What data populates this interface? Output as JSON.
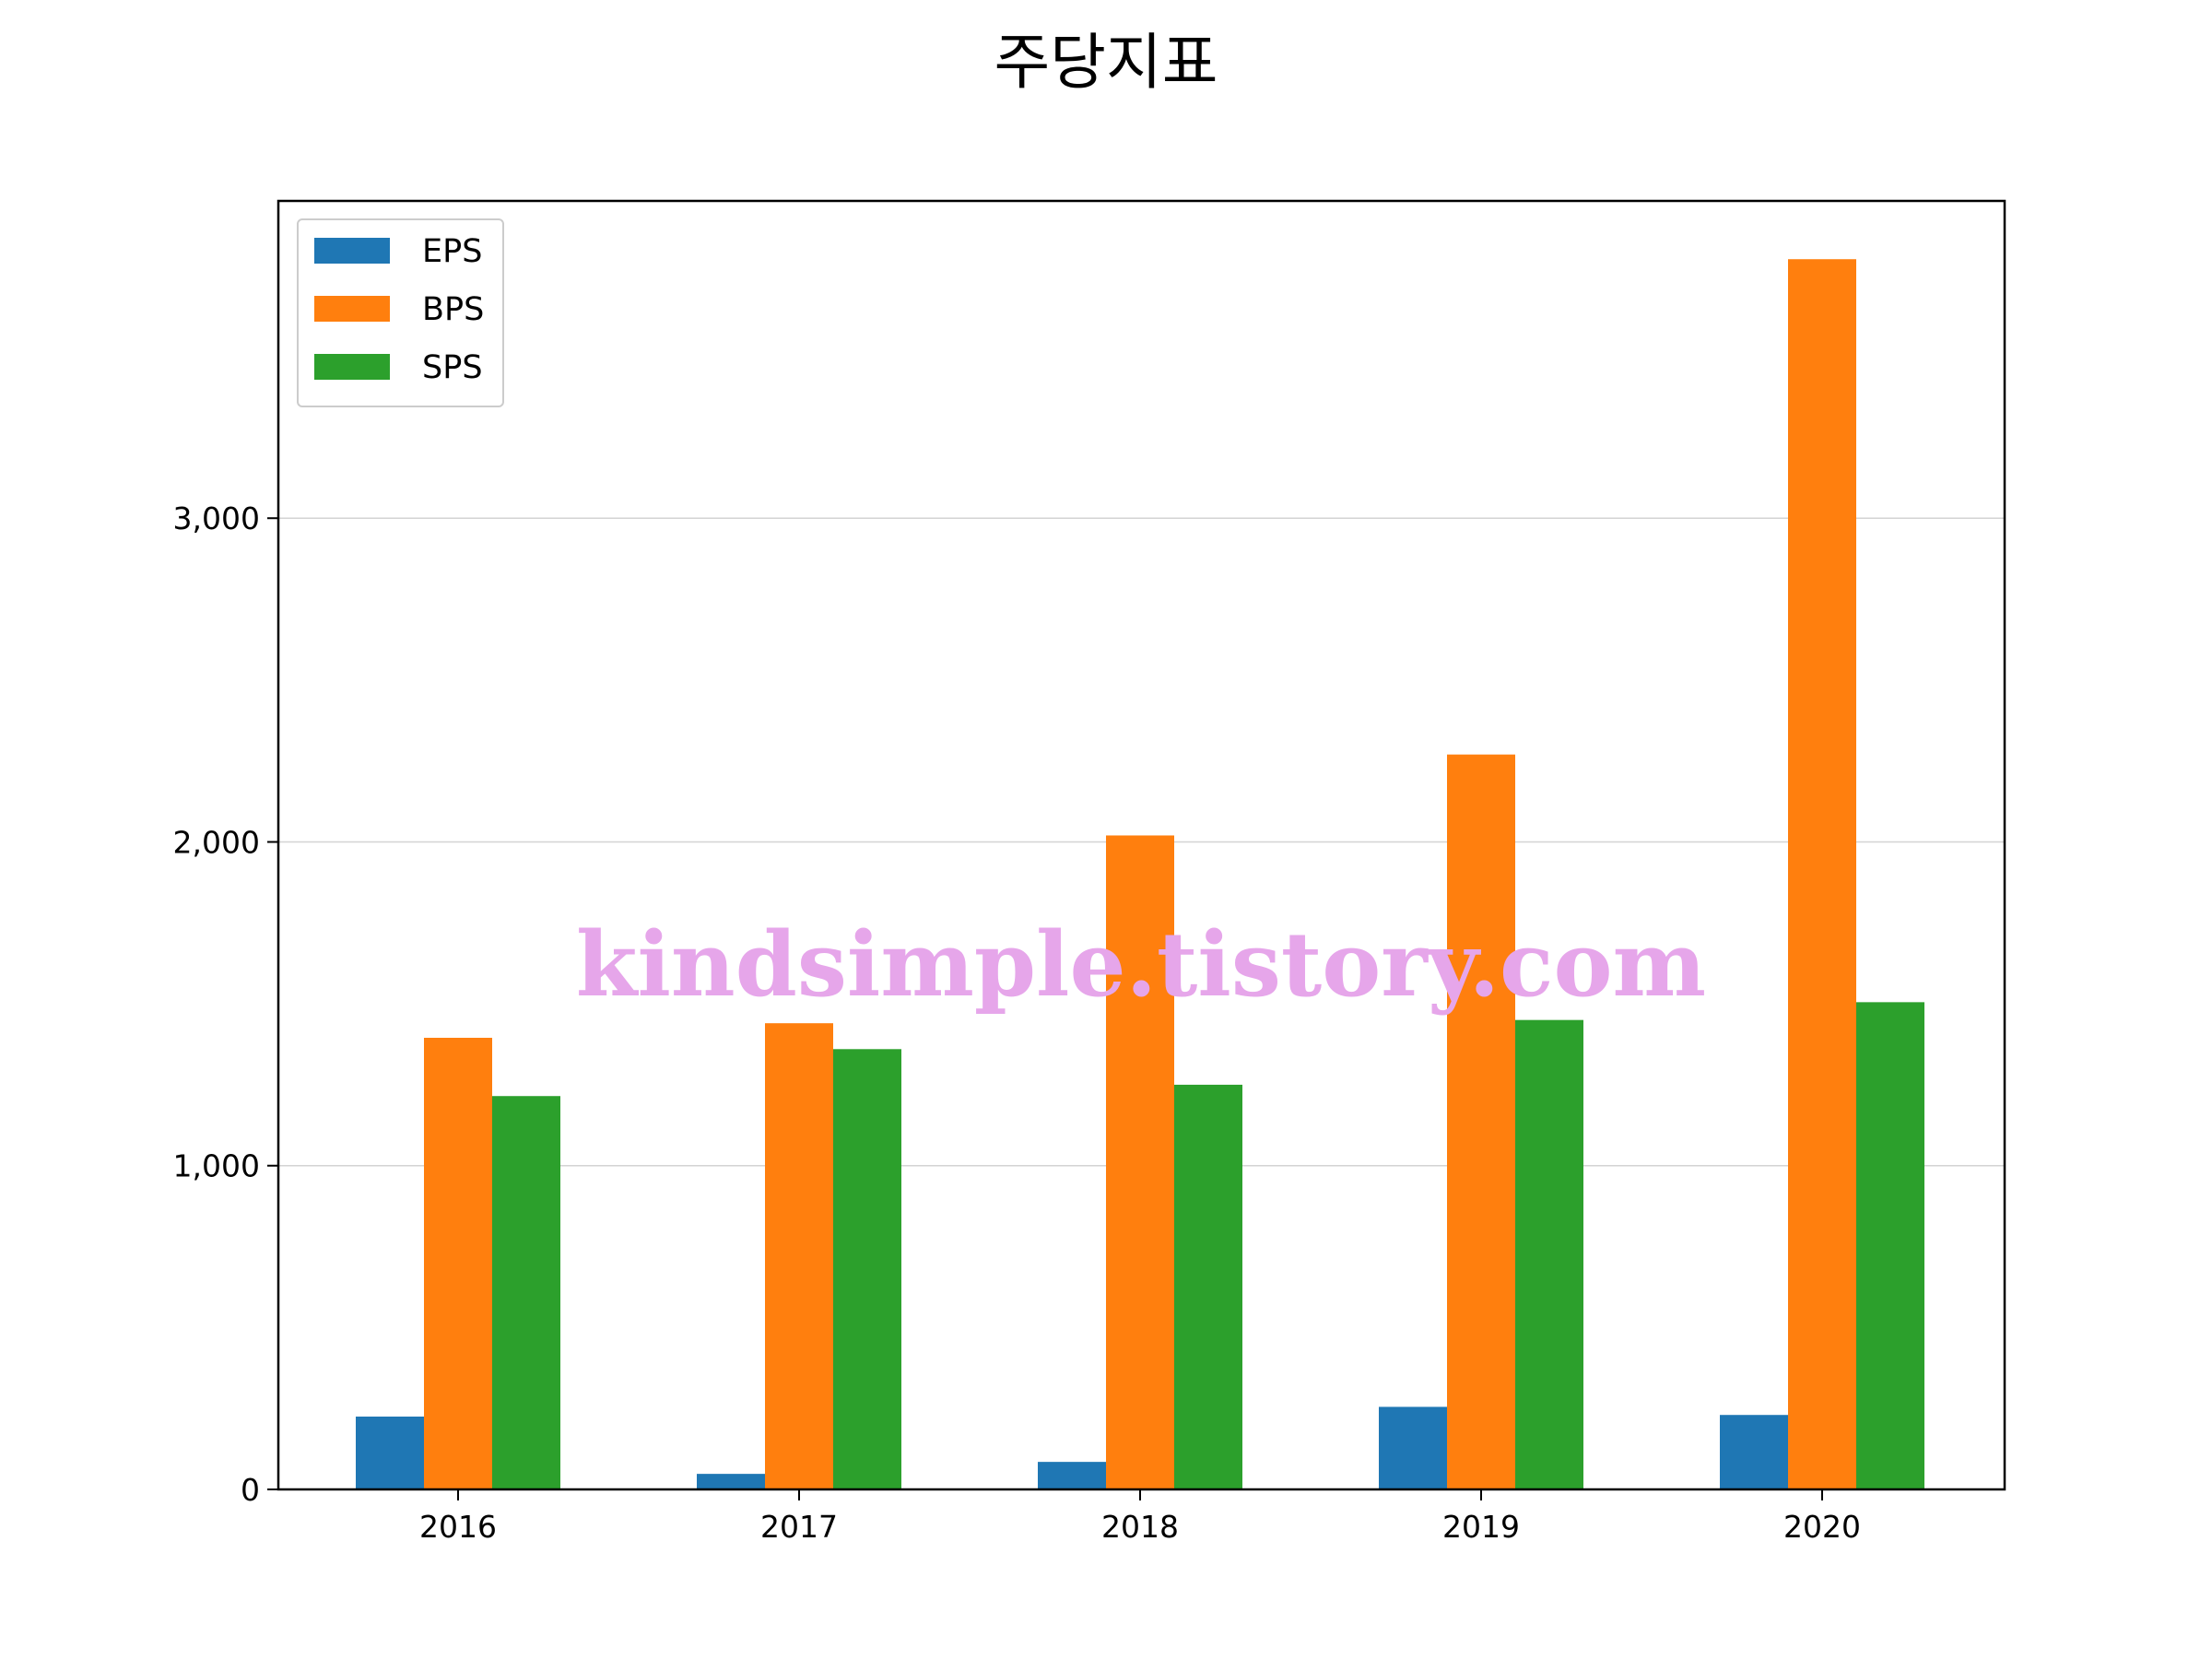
{
  "chart_data": {
    "type": "bar",
    "title": "주당지표",
    "categories": [
      "2016",
      "2017",
      "2018",
      "2019",
      "2020"
    ],
    "series": [
      {
        "name": "EPS",
        "color": "#1f77b4",
        "values": [
          225,
          48,
          85,
          255,
          230
        ]
      },
      {
        "name": "BPS",
        "color": "#ff7f0e",
        "values": [
          1395,
          1440,
          2020,
          2270,
          3800
        ]
      },
      {
        "name": "SPS",
        "color": "#2ca02c",
        "values": [
          1215,
          1360,
          1250,
          1450,
          1505
        ]
      }
    ],
    "ylim": [
      0,
      3980
    ],
    "yticks": [
      0,
      1000,
      2000,
      3000
    ],
    "ytick_labels": [
      "0",
      "1,000",
      "2,000",
      "3,000"
    ],
    "grid": "y",
    "legend_position": "top-left",
    "xlabel": "",
    "ylabel": ""
  },
  "watermark": "kindsimple.tistory.com"
}
